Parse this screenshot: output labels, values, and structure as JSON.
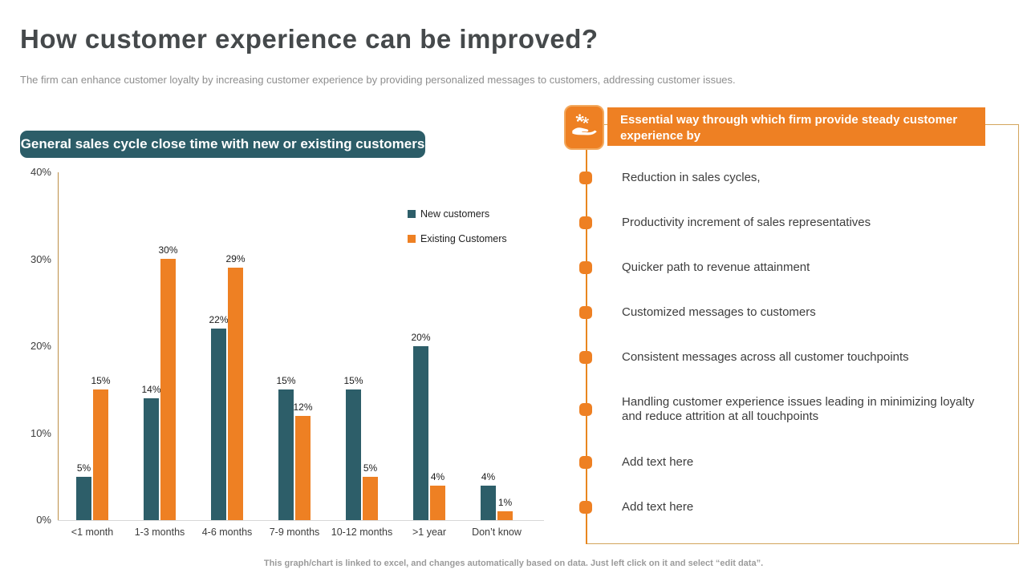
{
  "slide": {
    "title": "How customer experience can be improved?",
    "subtitle": "The firm can enhance customer loyalty by increasing customer experience by providing personalized messages to customers, addressing customer issues.",
    "footer": "This graph/chart is linked to excel, and changes automatically based on data. Just left click on it and select “edit data”."
  },
  "chart_data": {
    "type": "bar",
    "title": "General sales cycle close time with new or existing customers",
    "categories": [
      "<1 month",
      "1-3 months",
      "4-6 months",
      "7-9 months",
      "10-12 months",
      ">1 year",
      "Don’t know"
    ],
    "series": [
      {
        "name": "New customers",
        "color": "#2d5e69",
        "values": [
          5,
          14,
          22,
          15,
          15,
          20,
          4
        ]
      },
      {
        "name": "Existing Customers",
        "color": "#ee8023",
        "values": [
          15,
          30,
          29,
          12,
          5,
          4,
          1
        ]
      }
    ],
    "y_ticks": [
      "40%",
      "30%",
      "20%",
      "10%",
      "0%"
    ],
    "ylim": [
      0,
      40
    ],
    "grid": false,
    "legend_position": "top-right",
    "data_labels": "value + %"
  },
  "panel": {
    "header": "Essential way through which firm provide steady customer experience by",
    "icon": "hand-holding-flowers-icon",
    "accent_color": "#ee8023",
    "items": [
      "Reduction in sales cycles,",
      "Productivity increment of sales representatives",
      "Quicker path to revenue attainment",
      "Customized messages to customers",
      "Consistent messages across all customer touchpoints",
      "Handling customer experience issues leading in minimizing loyalty and reduce attrition at all touchpoints",
      "Add text here",
      "Add text here"
    ]
  },
  "colors": {
    "teal": "#2d5e69",
    "orange": "#ee8023",
    "axis": "#bd8f46",
    "panel_border": "#d3a55c",
    "title_text": "#45494b"
  }
}
